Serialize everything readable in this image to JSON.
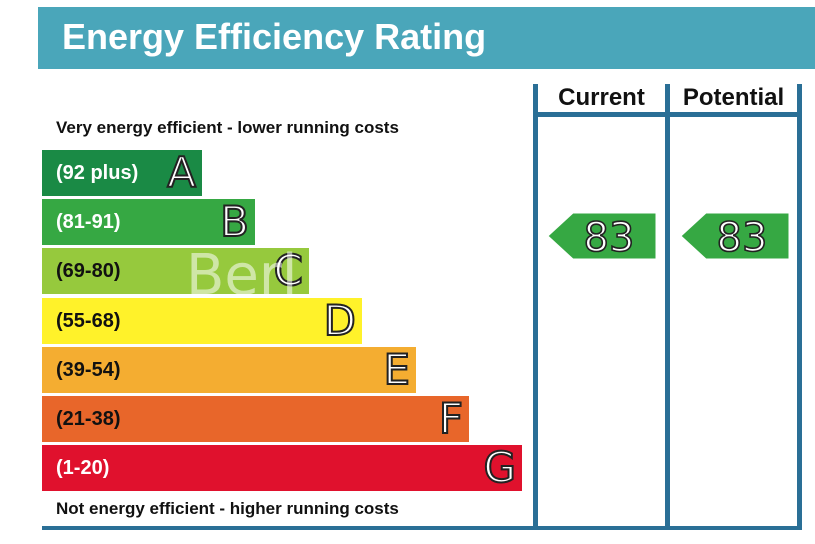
{
  "header": {
    "title": "Energy Efficiency Rating"
  },
  "captions": {
    "top": "Very energy efficient - lower running costs",
    "bottom": "Not energy efficient - higher running costs"
  },
  "columns": {
    "current": "Current",
    "potential": "Potential"
  },
  "watermark": "Berl",
  "chart_data": {
    "type": "bar",
    "categories": [
      "A",
      "B",
      "C",
      "D",
      "E",
      "F",
      "G"
    ],
    "ranges": [
      "(92 plus)",
      "(81-91)",
      "(69-80)",
      "(55-68)",
      "(39-54)",
      "(21-38)",
      "(1-20)"
    ],
    "band_colors": [
      "#1a8a45",
      "#36a843",
      "#96c93d",
      "#fff22a",
      "#f4ad31",
      "#e8662a",
      "#e0112d"
    ],
    "current_rating": {
      "value": 83,
      "band": "B",
      "color": "#36a843"
    },
    "potential_rating": {
      "value": 83,
      "band": "B",
      "color": "#36a843"
    }
  }
}
